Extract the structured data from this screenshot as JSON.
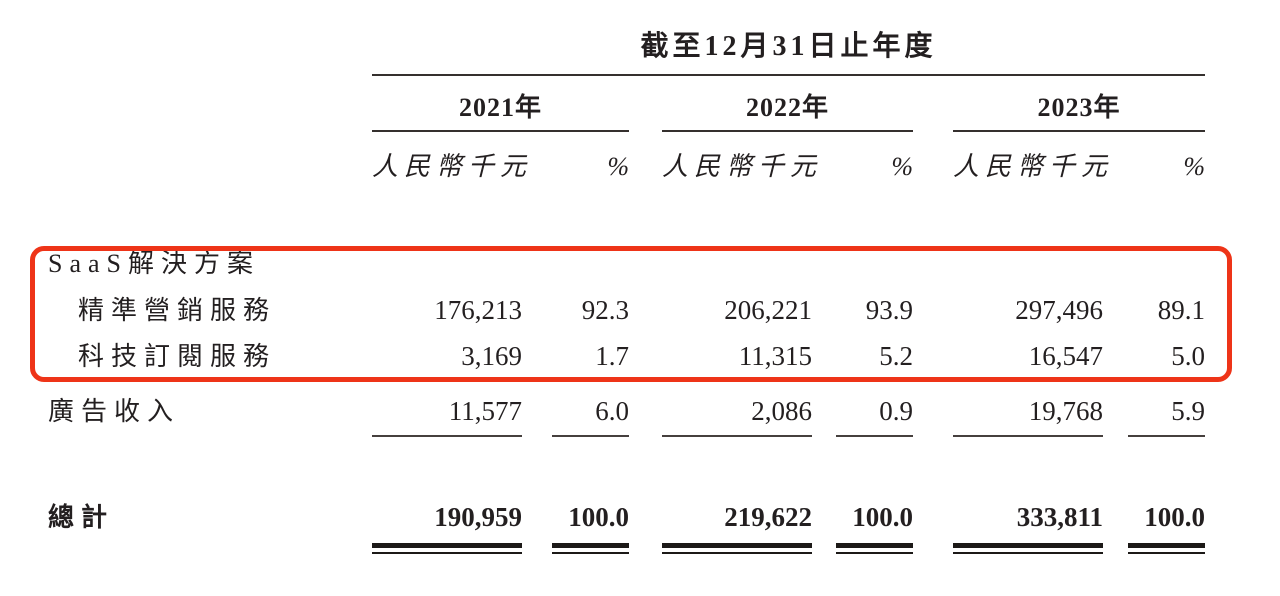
{
  "document": {
    "period_header": "截至12月31日止年度",
    "years": [
      "2021年",
      "2022年",
      "2023年"
    ],
    "unit_label": "人民幣千元",
    "percent_label": "%",
    "rows": [
      {
        "label": "SaaS解決方案",
        "values": [
          "",
          "",
          "",
          "",
          "",
          ""
        ]
      },
      {
        "label": "精準營銷服務",
        "values": [
          "176,213",
          "92.3",
          "206,221",
          "93.9",
          "297,496",
          "89.1"
        ]
      },
      {
        "label": "科技訂閱服務",
        "values": [
          "3,169",
          "1.7",
          "11,315",
          "5.2",
          "16,547",
          "5.0"
        ]
      },
      {
        "label": "廣告收入",
        "values": [
          "11,577",
          "6.0",
          "2,086",
          "0.9",
          "19,768",
          "5.9"
        ]
      },
      {
        "label": "總計",
        "values": [
          "190,959",
          "100.0",
          "219,622",
          "100.0",
          "333,811",
          "100.0"
        ]
      }
    ],
    "colors": {
      "text": "#231f20",
      "rule": "#35302e",
      "highlight_box": "#ee3418"
    }
  }
}
